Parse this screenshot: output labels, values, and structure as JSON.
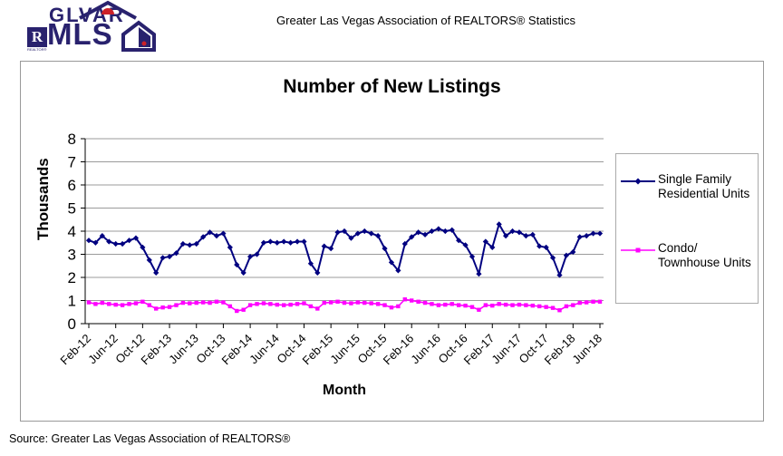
{
  "header": {
    "title": "Greater Las Vegas Association of REALTORS® Statistics"
  },
  "logo": {
    "glvar": "GLVAR",
    "mls": "MLS",
    "realtor_r": "R",
    "realtor_text": "REALTOR®"
  },
  "chart": {
    "title": "Number of New Listings"
  },
  "legend": {
    "entries": [
      {
        "lines": [
          "Single Family",
          "Residential Units"
        ]
      },
      {
        "lines": [
          "Condo/",
          "Townhouse Units"
        ]
      }
    ]
  },
  "footer": {
    "source": "Source: Greater Las Vegas Association of REALTORS®"
  },
  "colors": {
    "single_family": "#000080",
    "condo_townhouse": "#FF00FF",
    "gridline": "#9b9b9b",
    "logo_navy": "#29226e",
    "logo_red": "#cc2128"
  },
  "chart_data": {
    "type": "line",
    "title": "Number of New Listings",
    "xlabel": "Month",
    "ylabel": "Thousands",
    "ylim": [
      0,
      8
    ],
    "yticks": [
      0,
      1,
      2,
      3,
      4,
      5,
      6,
      7,
      8
    ],
    "grid": "horizontal",
    "legend_position": "right",
    "x_tick_every": 4,
    "x_tick_labels": [
      "Feb-12",
      "Jun-12",
      "Oct-12",
      "Feb-13",
      "Jun-13",
      "Oct-13",
      "Feb-14",
      "Jun-14",
      "Oct-14",
      "Feb-15",
      "Jun-15",
      "Oct-15",
      "Feb-16",
      "Jun-16",
      "Oct-16",
      "Feb-17",
      "Jun-17",
      "Oct-17",
      "Feb-18",
      "Jun-18"
    ],
    "x": [
      "Feb-12",
      "Mar-12",
      "Apr-12",
      "May-12",
      "Jun-12",
      "Jul-12",
      "Aug-12",
      "Sep-12",
      "Oct-12",
      "Nov-12",
      "Dec-12",
      "Jan-13",
      "Feb-13",
      "Mar-13",
      "Apr-13",
      "May-13",
      "Jun-13",
      "Jul-13",
      "Aug-13",
      "Sep-13",
      "Oct-13",
      "Nov-13",
      "Dec-13",
      "Jan-14",
      "Feb-14",
      "Mar-14",
      "Apr-14",
      "May-14",
      "Jun-14",
      "Jul-14",
      "Aug-14",
      "Sep-14",
      "Oct-14",
      "Nov-14",
      "Dec-14",
      "Jan-15",
      "Feb-15",
      "Mar-15",
      "Apr-15",
      "May-15",
      "Jun-15",
      "Jul-15",
      "Aug-15",
      "Sep-15",
      "Oct-15",
      "Nov-15",
      "Dec-15",
      "Jan-16",
      "Feb-16",
      "Mar-16",
      "Apr-16",
      "May-16",
      "Jun-16",
      "Jul-16",
      "Aug-16",
      "Sep-16",
      "Oct-16",
      "Nov-16",
      "Dec-16",
      "Jan-17",
      "Feb-17",
      "Mar-17",
      "Apr-17",
      "May-17",
      "Jun-17",
      "Jul-17",
      "Aug-17",
      "Sep-17",
      "Oct-17",
      "Nov-17",
      "Dec-17",
      "Jan-18",
      "Feb-18",
      "Mar-18",
      "Apr-18",
      "May-18",
      "Jun-18"
    ],
    "units": "thousands",
    "series": [
      {
        "name": "Single Family Residential Units",
        "color": "#000080",
        "marker": "diamond",
        "line_width": 2,
        "values": [
          3.6,
          3.5,
          3.8,
          3.55,
          3.45,
          3.45,
          3.6,
          3.7,
          3.3,
          2.75,
          2.2,
          2.85,
          2.9,
          3.05,
          3.45,
          3.4,
          3.45,
          3.75,
          3.95,
          3.8,
          3.9,
          3.3,
          2.55,
          2.2,
          2.9,
          3.0,
          3.5,
          3.55,
          3.5,
          3.55,
          3.5,
          3.55,
          3.55,
          2.6,
          2.2,
          3.35,
          3.25,
          3.95,
          4.0,
          3.7,
          3.9,
          4.0,
          3.9,
          3.8,
          3.25,
          2.65,
          2.3,
          3.45,
          3.75,
          3.95,
          3.85,
          4.0,
          4.1,
          4.0,
          4.05,
          3.6,
          3.4,
          2.9,
          2.15,
          3.55,
          3.3,
          4.3,
          3.8,
          4.0,
          3.95,
          3.8,
          3.85,
          3.35,
          3.3,
          2.85,
          2.1,
          2.95,
          3.1,
          3.75,
          3.8,
          3.9,
          3.9
        ]
      },
      {
        "name": "Condo/Townhouse Units",
        "color": "#FF00FF",
        "marker": "square",
        "line_width": 1.6,
        "values": [
          0.92,
          0.85,
          0.9,
          0.85,
          0.82,
          0.8,
          0.85,
          0.88,
          0.95,
          0.8,
          0.65,
          0.7,
          0.72,
          0.8,
          0.9,
          0.88,
          0.9,
          0.92,
          0.9,
          0.95,
          0.92,
          0.75,
          0.55,
          0.6,
          0.8,
          0.85,
          0.88,
          0.85,
          0.82,
          0.8,
          0.82,
          0.85,
          0.88,
          0.75,
          0.65,
          0.9,
          0.92,
          0.95,
          0.9,
          0.88,
          0.92,
          0.9,
          0.88,
          0.85,
          0.8,
          0.7,
          0.75,
          1.05,
          1.0,
          0.95,
          0.9,
          0.85,
          0.8,
          0.82,
          0.85,
          0.8,
          0.78,
          0.72,
          0.6,
          0.8,
          0.78,
          0.85,
          0.82,
          0.8,
          0.82,
          0.8,
          0.78,
          0.75,
          0.72,
          0.68,
          0.58,
          0.75,
          0.8,
          0.9,
          0.92,
          0.95,
          0.95
        ]
      }
    ]
  }
}
